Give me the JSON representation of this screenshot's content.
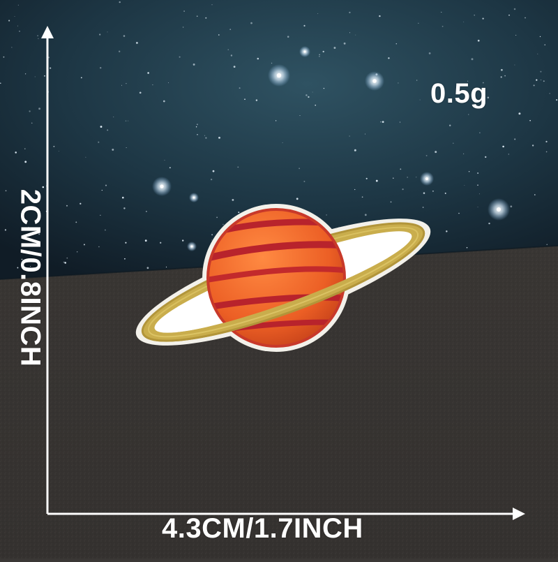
{
  "product": {
    "weight_label": "0.5g",
    "width_label": "4.3CM/1.7INCH",
    "height_label": "2CM/0.8INCH"
  },
  "colors": {
    "sky_dark": "#132430",
    "sky_mid": "#2c4a5a",
    "surface": "#3a3735",
    "planet_orange": "#ef6a2c",
    "planet_red_stripe": "#b8232c",
    "ring_gold": "#c9ad4c",
    "patch_border": "#f3f1ea",
    "arrow_white": "#ffffff"
  },
  "icons": {
    "planet": "saturn-patch-icon",
    "arrow": "arrow-icon"
  }
}
